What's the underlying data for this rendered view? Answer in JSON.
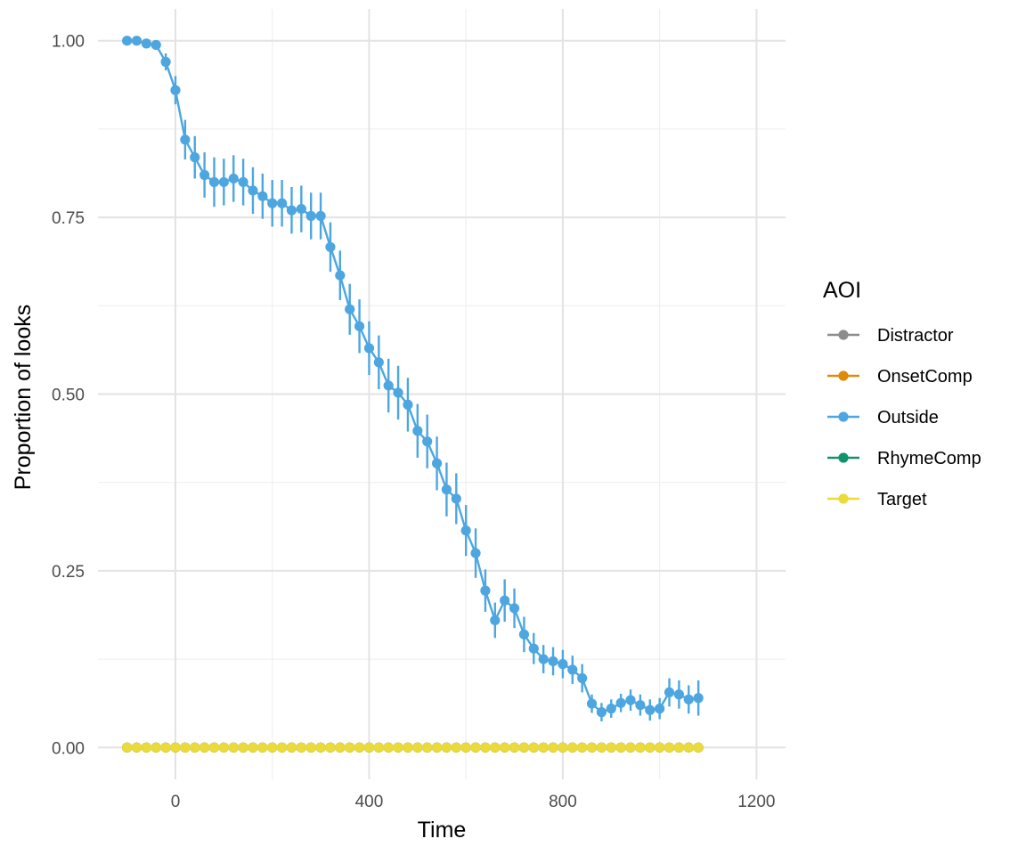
{
  "chart_data": {
    "type": "line",
    "title": "",
    "xlabel": "Time",
    "ylabel": "Proportion of looks",
    "xlim": [
      -160,
      1260
    ],
    "ylim": [
      -0.045,
      1.045
    ],
    "x_ticks": [
      0,
      400,
      800,
      1200
    ],
    "x_tick_labels": [
      "0",
      "400",
      "800",
      "1200"
    ],
    "y_ticks": [
      0,
      0.25,
      0.5,
      0.75,
      1.0
    ],
    "y_tick_labels": [
      "0.00",
      "0.25",
      "0.50",
      "0.75",
      "1.00"
    ],
    "grid": true,
    "error_bars": true,
    "legend": {
      "title": "AOI",
      "position": "right",
      "entries": [
        "Distractor",
        "OnsetComp",
        "Outside",
        "RhymeComp",
        "Target"
      ]
    },
    "x": [
      -100,
      -80,
      -60,
      -40,
      -20,
      0,
      20,
      40,
      60,
      80,
      100,
      120,
      140,
      160,
      180,
      200,
      220,
      240,
      260,
      280,
      300,
      320,
      340,
      360,
      380,
      400,
      420,
      440,
      460,
      480,
      500,
      520,
      540,
      560,
      580,
      600,
      620,
      640,
      660,
      680,
      700,
      720,
      740,
      760,
      780,
      800,
      820,
      840,
      860,
      880,
      900,
      920,
      940,
      960,
      980,
      1000,
      1020,
      1040,
      1060,
      1080
    ],
    "series": [
      {
        "name": "Distractor",
        "color": "#8c8c8c",
        "values": [
          0,
          0,
          0,
          0,
          0,
          0,
          0,
          0,
          0,
          0,
          0,
          0,
          0,
          0,
          0,
          0,
          0,
          0,
          0,
          0,
          0,
          0,
          0,
          0,
          0,
          0,
          0,
          0,
          0,
          0,
          0,
          0,
          0,
          0,
          0,
          0,
          0,
          0,
          0,
          0,
          0,
          0,
          0,
          0,
          0,
          0,
          0,
          0,
          0,
          0,
          0,
          0,
          0,
          0,
          0,
          0,
          0,
          0,
          0,
          0
        ],
        "errors": [
          0,
          0,
          0,
          0,
          0,
          0,
          0,
          0,
          0,
          0,
          0,
          0,
          0,
          0,
          0,
          0,
          0,
          0,
          0,
          0,
          0,
          0,
          0,
          0,
          0,
          0,
          0,
          0,
          0,
          0,
          0,
          0,
          0,
          0,
          0,
          0,
          0,
          0,
          0,
          0,
          0,
          0,
          0,
          0,
          0,
          0,
          0,
          0,
          0,
          0,
          0,
          0,
          0,
          0,
          0,
          0,
          0,
          0,
          0,
          0
        ]
      },
      {
        "name": "OnsetComp",
        "color": "#e08a0b",
        "values": [
          0,
          0,
          0,
          0,
          0,
          0,
          0,
          0,
          0,
          0,
          0,
          0,
          0,
          0,
          0,
          0,
          0,
          0,
          0,
          0,
          0,
          0,
          0,
          0,
          0,
          0,
          0,
          0,
          0,
          0,
          0,
          0,
          0,
          0,
          0,
          0,
          0,
          0,
          0,
          0,
          0,
          0,
          0,
          0,
          0,
          0,
          0,
          0,
          0,
          0,
          0,
          0,
          0,
          0,
          0,
          0,
          0,
          0,
          0,
          0
        ],
        "errors": [
          0,
          0,
          0,
          0,
          0,
          0,
          0,
          0,
          0,
          0,
          0,
          0,
          0,
          0,
          0,
          0,
          0,
          0,
          0,
          0,
          0,
          0,
          0,
          0,
          0,
          0,
          0,
          0,
          0,
          0,
          0,
          0,
          0,
          0,
          0,
          0,
          0,
          0,
          0,
          0,
          0,
          0,
          0,
          0,
          0,
          0,
          0,
          0,
          0,
          0,
          0,
          0,
          0,
          0,
          0,
          0,
          0,
          0,
          0,
          0
        ]
      },
      {
        "name": "Outside",
        "color": "#4da6e0",
        "values": [
          1.0,
          1.0,
          0.996,
          0.994,
          0.97,
          0.93,
          0.86,
          0.835,
          0.81,
          0.8,
          0.8,
          0.805,
          0.8,
          0.788,
          0.78,
          0.77,
          0.77,
          0.76,
          0.762,
          0.752,
          0.752,
          0.708,
          0.668,
          0.62,
          0.596,
          0.565,
          0.545,
          0.512,
          0.502,
          0.485,
          0.448,
          0.433,
          0.402,
          0.365,
          0.352,
          0.307,
          0.275,
          0.222,
          0.18,
          0.208,
          0.197,
          0.16,
          0.14,
          0.125,
          0.122,
          0.118,
          0.11,
          0.098,
          0.062,
          0.05,
          0.055,
          0.063,
          0.067,
          0.06,
          0.053,
          0.055,
          0.078,
          0.075,
          0.068,
          0.07
        ],
        "errors": [
          0.0,
          0.0,
          0.003,
          0.005,
          0.012,
          0.02,
          0.028,
          0.03,
          0.032,
          0.035,
          0.033,
          0.033,
          0.033,
          0.033,
          0.032,
          0.033,
          0.033,
          0.033,
          0.033,
          0.033,
          0.033,
          0.035,
          0.035,
          0.036,
          0.038,
          0.038,
          0.038,
          0.038,
          0.038,
          0.038,
          0.038,
          0.038,
          0.038,
          0.038,
          0.036,
          0.036,
          0.035,
          0.03,
          0.025,
          0.03,
          0.028,
          0.025,
          0.022,
          0.02,
          0.02,
          0.02,
          0.02,
          0.02,
          0.013,
          0.013,
          0.013,
          0.013,
          0.015,
          0.015,
          0.015,
          0.015,
          0.02,
          0.02,
          0.02,
          0.025
        ]
      },
      {
        "name": "RhymeComp",
        "color": "#12936d",
        "values": [
          0,
          0,
          0,
          0,
          0,
          0,
          0,
          0,
          0,
          0,
          0,
          0,
          0,
          0,
          0,
          0,
          0,
          0,
          0,
          0,
          0,
          0,
          0,
          0,
          0,
          0,
          0,
          0,
          0,
          0,
          0,
          0,
          0,
          0,
          0,
          0,
          0,
          0,
          0,
          0,
          0,
          0,
          0,
          0,
          0,
          0,
          0,
          0,
          0,
          0,
          0,
          0,
          0,
          0,
          0,
          0,
          0,
          0,
          0,
          0
        ],
        "errors": [
          0,
          0,
          0,
          0,
          0,
          0,
          0,
          0,
          0,
          0,
          0,
          0,
          0,
          0,
          0,
          0,
          0,
          0,
          0,
          0,
          0,
          0,
          0,
          0,
          0,
          0,
          0,
          0,
          0,
          0,
          0,
          0,
          0,
          0,
          0,
          0,
          0,
          0,
          0,
          0,
          0,
          0,
          0,
          0,
          0,
          0,
          0,
          0,
          0,
          0,
          0,
          0,
          0,
          0,
          0,
          0,
          0,
          0,
          0,
          0
        ]
      },
      {
        "name": "Target",
        "color": "#eadb3a",
        "values": [
          0,
          0,
          0,
          0,
          0,
          0,
          0,
          0,
          0,
          0,
          0,
          0,
          0,
          0,
          0,
          0,
          0,
          0,
          0,
          0,
          0,
          0,
          0,
          0,
          0,
          0,
          0,
          0,
          0,
          0,
          0,
          0,
          0,
          0,
          0,
          0,
          0,
          0,
          0,
          0,
          0,
          0,
          0,
          0,
          0,
          0,
          0,
          0,
          0,
          0,
          0,
          0,
          0,
          0,
          0,
          0,
          0,
          0,
          0,
          0
        ],
        "errors": [
          0,
          0,
          0,
          0,
          0,
          0,
          0,
          0,
          0,
          0,
          0,
          0,
          0,
          0,
          0,
          0,
          0,
          0,
          0,
          0,
          0,
          0,
          0,
          0,
          0,
          0,
          0,
          0,
          0,
          0,
          0,
          0,
          0,
          0,
          0,
          0,
          0,
          0,
          0,
          0,
          0,
          0,
          0,
          0,
          0,
          0,
          0,
          0,
          0,
          0,
          0,
          0,
          0,
          0,
          0,
          0,
          0,
          0,
          0,
          0
        ]
      }
    ]
  }
}
